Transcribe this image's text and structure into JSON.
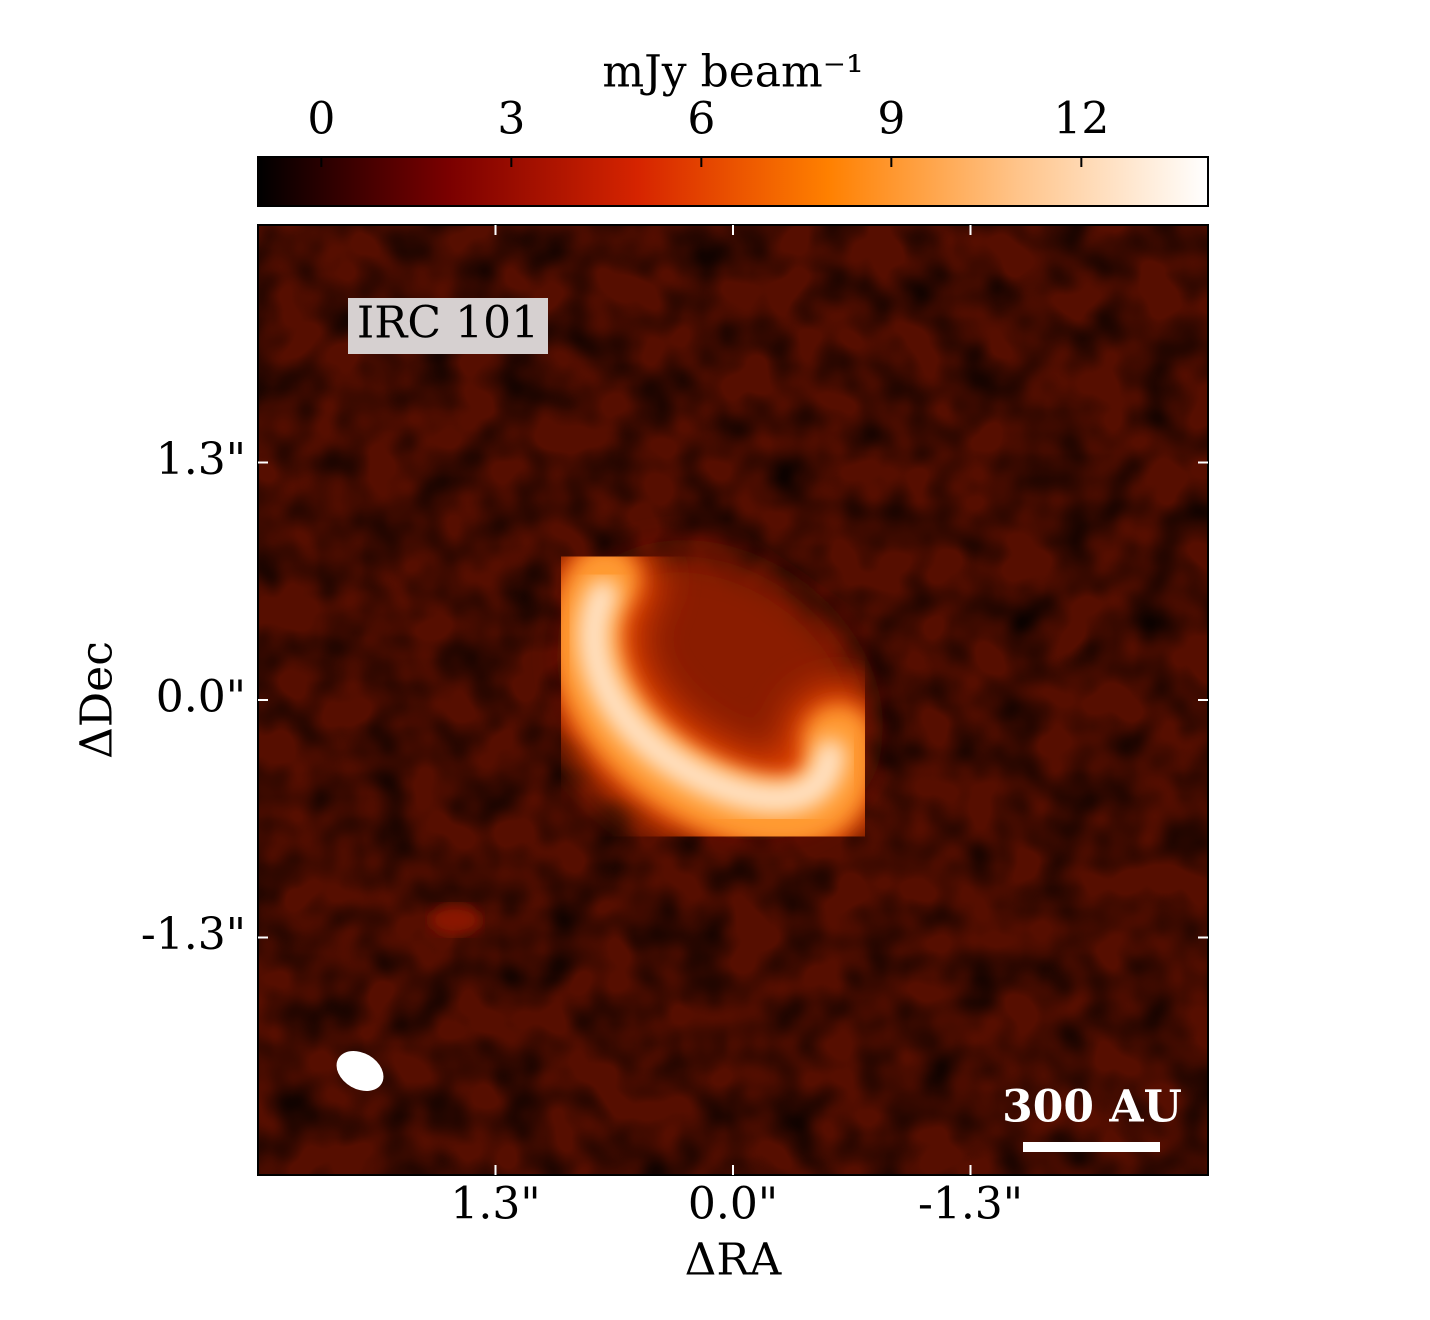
{
  "chart_data": {
    "type": "image",
    "annotation": "IRC 101",
    "scale_bar_label": "300 AU",
    "x_label": "ΔRA",
    "y_label": "ΔDec",
    "xlim": [
      2.6,
      -2.6
    ],
    "ylim": [
      -2.6,
      2.6
    ],
    "xticks": [
      {
        "value": 1.3,
        "label": "1.3\""
      },
      {
        "value": 0.0,
        "label": "0.0\""
      },
      {
        "value": -1.3,
        "label": "-1.3\""
      }
    ],
    "yticks": [
      {
        "value": 1.3,
        "label": "1.3\""
      },
      {
        "value": 0.0,
        "label": "0.0\""
      },
      {
        "value": -1.3,
        "label": "-1.3\""
      }
    ],
    "colorbar_label": "mJy beam⁻¹",
    "clim": [
      -1,
      14
    ],
    "cticks": [
      0,
      3,
      6,
      9,
      12
    ],
    "colormap": [
      "#000000",
      "#7a0000",
      "#d62400",
      "#ff8000",
      "#ffc48a",
      "#ffffff"
    ]
  }
}
